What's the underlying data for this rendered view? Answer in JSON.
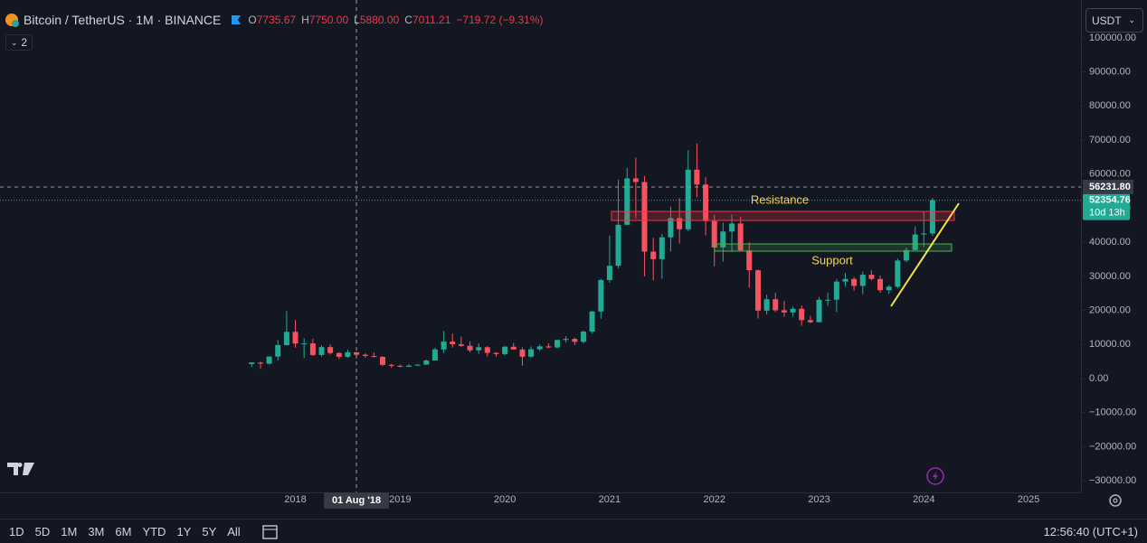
{
  "header": {
    "symbol": "Bitcoin / TetherUS · 1M · BINANCE",
    "o_label": "O",
    "o_value": "7735.67",
    "h_label": "H",
    "h_value": "7750.00",
    "l_label": "L",
    "l_value": "5880.00",
    "c_label": "C",
    "c_value": "7011.21",
    "change": "−719.72 (−9.31%)",
    "indicators": "2",
    "currency": "USDT"
  },
  "chart_data": {
    "type": "candlestick",
    "up_color": "#22ab94",
    "down_color": "#f7525f",
    "grid": false,
    "xlim": [
      2015.18,
      2025.5
    ],
    "xticks": [
      2018,
      2019,
      2020,
      2021,
      2022,
      2023,
      2024,
      2025
    ],
    "ylim": [
      -33400,
      111100
    ],
    "yticks": [
      {
        "value": -30000,
        "label": "−30000.00"
      },
      {
        "value": -20000,
        "label": "−20000.00"
      },
      {
        "value": -10000,
        "label": "−10000.00"
      },
      {
        "value": 0,
        "label": "0.00"
      },
      {
        "value": 10000,
        "label": "10000.00"
      },
      {
        "value": 20000,
        "label": "20000.00"
      },
      {
        "value": 30000,
        "label": "30000.00"
      },
      {
        "value": 40000,
        "label": "40000.00"
      },
      {
        "value": 50000,
        "label": "50000.00"
      },
      {
        "value": 60000,
        "label": "60000.00"
      },
      {
        "value": 70000,
        "label": "70000.00"
      },
      {
        "value": 80000,
        "label": "80000.00"
      },
      {
        "value": 90000,
        "label": "90000.00"
      },
      {
        "value": 100000,
        "label": "100000.00"
      }
    ],
    "x": [
      2017.583,
      2017.667,
      2017.75,
      2017.833,
      2017.917,
      2018,
      2018.083,
      2018.167,
      2018.25,
      2018.333,
      2018.417,
      2018.5,
      2018.583,
      2018.667,
      2018.75,
      2018.833,
      2018.917,
      2019,
      2019.083,
      2019.167,
      2019.25,
      2019.333,
      2019.417,
      2019.5,
      2019.583,
      2019.667,
      2019.75,
      2019.833,
      2019.917,
      2020,
      2020.083,
      2020.167,
      2020.25,
      2020.333,
      2020.417,
      2020.5,
      2020.583,
      2020.667,
      2020.75,
      2020.833,
      2020.917,
      2021,
      2021.083,
      2021.167,
      2021.25,
      2021.333,
      2021.417,
      2021.5,
      2021.583,
      2021.667,
      2021.75,
      2021.833,
      2021.917,
      2022,
      2022.083,
      2022.167,
      2022.25,
      2022.333,
      2022.417,
      2022.5,
      2022.583,
      2022.667,
      2022.75,
      2022.833,
      2022.917,
      2023,
      2023.083,
      2023.167,
      2023.25,
      2023.333,
      2023.417,
      2023.5,
      2023.583,
      2023.667,
      2023.75,
      2023.833,
      2023.917,
      2024,
      2024.083
    ],
    "open": [
      4261,
      4689,
      4378,
      6463,
      9838,
      13715,
      10285,
      10325,
      6922,
      9246,
      7494,
      6391,
      7735.67,
      7011,
      6626,
      6370,
      4041,
      3743,
      3458,
      3814,
      4103,
      5321,
      8555,
      10855,
      10085,
      9630,
      8294,
      9199,
      7547,
      7195,
      9351,
      8523,
      6413,
      8620,
      9448,
      9138,
      11335,
      11649,
      10776,
      13791,
      19695,
      28923,
      33092,
      45134,
      58740,
      57697,
      37254,
      35046,
      41461,
      47100,
      43820,
      61300,
      56950,
      46217,
      38466,
      43160,
      45510,
      37630,
      31802,
      19942,
      23297,
      20049,
      19423,
      20491,
      17165,
      16542,
      23125,
      23142,
      28466,
      29233,
      27211,
      30472,
      29232,
      25940,
      26962,
      34640,
      37724,
      42284,
      42580
    ],
    "high": [
      4745,
      4939,
      6470,
      11300,
      19798,
      17176,
      11786,
      11710,
      9759,
      10020,
      7786,
      8507,
      7750,
      7410,
      7680,
      6615,
      4311,
      4140,
      4198,
      4140,
      5600,
      9074,
      13970,
      13200,
      12325,
      10950,
      10370,
      9508,
      7750,
      9578,
      10500,
      9189,
      9460,
      10067,
      10380,
      11444,
      12468,
      12050,
      14100,
      19863,
      29300,
      41950,
      58352,
      61844,
      64854,
      59500,
      41330,
      42448,
      50500,
      52920,
      67000,
      69000,
      59053,
      47990,
      45821,
      48189,
      47444,
      40023,
      31982,
      24668,
      25211,
      22799,
      21085,
      21480,
      18387,
      23960,
      25250,
      29184,
      31000,
      29820,
      31431,
      31804,
      30244,
      27483,
      35280,
      38450,
      44700,
      48969,
      53019
    ],
    "low": [
      3400,
      2817,
      4110,
      5325,
      9720,
      9035,
      6000,
      6600,
      6430,
      7032,
      5755,
      6070,
      5880,
      6111,
      6180,
      3652,
      3156,
      3349,
      3400,
      3689,
      4030,
      5350,
      7434,
      9077,
      9320,
      7710,
      7300,
      6515,
      6435,
      6871,
      8445,
      3782,
      6150,
      8100,
      8833,
      8893,
      10518,
      9825,
      10374,
      13195,
      17572,
      28130,
      32296,
      44950,
      47044,
      30000,
      28805,
      29278,
      37332,
      39600,
      43283,
      53256,
      42000,
      32917,
      34322,
      37155,
      37578,
      26700,
      17622,
      18781,
      19520,
      18125,
      18190,
      15476,
      16256,
      16499,
      21351,
      19549,
      26942,
      25811,
      24800,
      28861,
      25166,
      24901,
      26538,
      34097,
      37617,
      38555,
      41884
    ],
    "close": [
      4724,
      4378,
      6463,
      9838,
      13716,
      10285,
      10326,
      6923,
      9246,
      7494,
      6391,
      7730,
      7011.21,
      6626,
      6371,
      4041,
      3742,
      3458,
      3814,
      4103,
      5320,
      8555,
      10854,
      10085,
      9630,
      8293,
      9199,
      7546,
      7196,
      9353,
      8524,
      6410,
      8620,
      9448,
      9138,
      11335,
      11649,
      10776,
      13791,
      19695,
      28923,
      33092,
      45135,
      58740,
      57694,
      37253,
      35045,
      41461,
      47100,
      43824,
      61299,
      56950,
      46216,
      38466,
      43160,
      45510,
      37630,
      31801,
      19942,
      23293,
      20050,
      19422,
      20491,
      17164,
      16542,
      23125,
      23141,
      28465,
      29233,
      27210,
      30472,
      29232,
      25941,
      26963,
      34639,
      37723,
      42283,
      42580,
      52354.76
    ],
    "annotations": {
      "resistance": "Resistance",
      "support": "Support"
    },
    "crosshair": {
      "x_label": "01 Aug '18",
      "y_value": {
        "value": 56231.8,
        "label": "56231.80"
      }
    },
    "countdown": "10d 13h"
  },
  "toolbar": {
    "ranges": [
      "1D",
      "5D",
      "1M",
      "3M",
      "6M",
      "YTD",
      "1Y",
      "5Y",
      "All"
    ],
    "clock": "12:56:40 (UTC+1)"
  }
}
